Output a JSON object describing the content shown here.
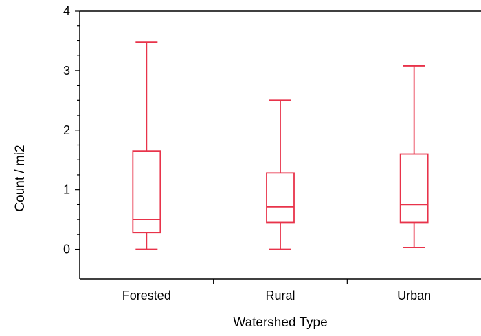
{
  "chart_data": {
    "type": "boxplot",
    "xlabel": "Watershed Type",
    "ylabel": "Count / mi2",
    "ylim": [
      -0.5,
      4
    ],
    "yticks": [
      0,
      1,
      2,
      3,
      4
    ],
    "categories": [
      "Forested",
      "Rural",
      "Urban"
    ],
    "boxes": [
      {
        "category": "Forested",
        "min": 0.0,
        "q1": 0.28,
        "median": 0.5,
        "q3": 1.65,
        "max": 3.48
      },
      {
        "category": "Rural",
        "min": 0.0,
        "q1": 0.45,
        "median": 0.71,
        "q3": 1.28,
        "max": 2.5
      },
      {
        "category": "Urban",
        "min": 0.03,
        "q1": 0.45,
        "median": 0.75,
        "q3": 1.6,
        "max": 3.08
      }
    ],
    "color": "#e8334a",
    "grid": false
  }
}
